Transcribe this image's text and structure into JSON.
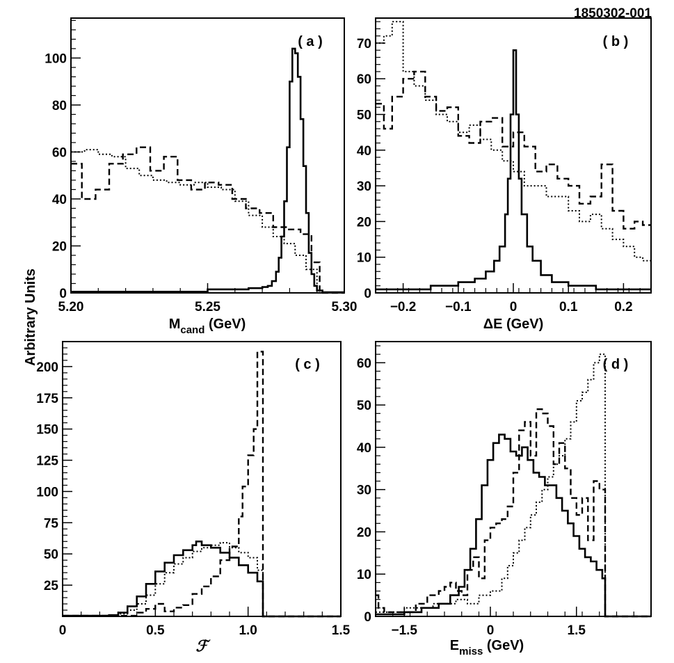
{
  "figure_id": "1850302-001",
  "y_axis_label": "Arbitrary Units",
  "chart_data": [
    {
      "type": "step",
      "tag": "( a )",
      "xlabel_main": "M",
      "xlabel_sub": "cand",
      "xlabel_unit": " (GeV)",
      "xlim": [
        5.2,
        5.3
      ],
      "ylim": [
        0,
        117
      ],
      "xticks": [
        {
          "v": 5.2,
          "label": "5.20"
        },
        {
          "v": 5.25,
          "label": "5.25"
        },
        {
          "v": 5.3,
          "label": "5.30"
        }
      ],
      "yticks": [
        {
          "v": 0,
          "label": "0"
        },
        {
          "v": 20,
          "label": "20"
        },
        {
          "v": 40,
          "label": "40"
        },
        {
          "v": 60,
          "label": "60"
        },
        {
          "v": 80,
          "label": "80"
        },
        {
          "v": 100,
          "label": "100"
        }
      ],
      "series": [
        {
          "name": "solid",
          "style": "solid",
          "x": [
            5.2,
            5.25,
            5.265,
            5.27,
            5.272,
            5.2735,
            5.275,
            5.276,
            5.277,
            5.278,
            5.279,
            5.28,
            5.281,
            5.282,
            5.283,
            5.284,
            5.285,
            5.286,
            5.287,
            5.288,
            5.289,
            5.29,
            5.292,
            5.3
          ],
          "y": [
            0.5,
            1.5,
            2,
            2.5,
            3,
            5,
            9,
            15,
            24,
            39,
            62,
            90,
            104,
            102,
            92,
            74,
            54,
            34,
            17,
            8,
            3,
            1,
            0.3,
            0.3
          ]
        },
        {
          "name": "dashed",
          "style": "dashed",
          "x": [
            5.2,
            5.204,
            5.209,
            5.214,
            5.219,
            5.224,
            5.229,
            5.234,
            5.239,
            5.244,
            5.249,
            5.254,
            5.259,
            5.264,
            5.269,
            5.274,
            5.279,
            5.284,
            5.288,
            5.291
          ],
          "y": [
            55,
            40,
            44,
            55,
            59,
            62,
            52,
            58,
            48,
            44,
            47,
            46,
            40,
            36,
            34,
            28,
            27,
            25,
            13,
            0
          ]
        },
        {
          "name": "dotted",
          "style": "dotted",
          "x": [
            5.2,
            5.205,
            5.21,
            5.215,
            5.22,
            5.225,
            5.23,
            5.235,
            5.24,
            5.245,
            5.25,
            5.255,
            5.26,
            5.265,
            5.27,
            5.274,
            5.278,
            5.282,
            5.286,
            5.29
          ],
          "y": [
            60,
            61,
            59,
            58,
            53,
            50,
            48,
            47,
            46,
            47,
            45,
            44,
            39,
            33,
            28,
            24,
            21,
            16,
            10,
            0
          ]
        }
      ]
    },
    {
      "type": "step",
      "tag": "( b )",
      "xlabel_main": "ΔE (GeV)",
      "xlim": [
        -0.25,
        0.25
      ],
      "ylim": [
        0,
        77
      ],
      "xticks": [
        {
          "v": -0.2,
          "label": "−0.2"
        },
        {
          "v": -0.1,
          "label": "−0.1"
        },
        {
          "v": 0,
          "label": "0"
        },
        {
          "v": 0.1,
          "label": "0.1"
        },
        {
          "v": 0.2,
          "label": "0.2"
        }
      ],
      "yticks": [
        {
          "v": 0,
          "label": "0"
        },
        {
          "v": 10,
          "label": "10"
        },
        {
          "v": 20,
          "label": "20"
        },
        {
          "v": 30,
          "label": "30"
        },
        {
          "v": 40,
          "label": "40"
        },
        {
          "v": 50,
          "label": "50"
        },
        {
          "v": 60,
          "label": "60"
        },
        {
          "v": 70,
          "label": "70"
        }
      ],
      "series": [
        {
          "name": "solid",
          "style": "solid",
          "x": [
            -0.25,
            -0.15,
            -0.1,
            -0.07,
            -0.05,
            -0.035,
            -0.025,
            -0.015,
            -0.01,
            -0.005,
            0,
            0.005,
            0.01,
            0.015,
            0.025,
            0.035,
            0.05,
            0.07,
            0.1,
            0.15,
            0.25
          ],
          "y": [
            1,
            2,
            3,
            4,
            6,
            9,
            13,
            22,
            32,
            50,
            68,
            50,
            32,
            22,
            13,
            9,
            5,
            3,
            2,
            1,
            1
          ]
        },
        {
          "name": "dashed",
          "style": "dashed",
          "x": [
            -0.25,
            -0.235,
            -0.22,
            -0.2,
            -0.18,
            -0.16,
            -0.14,
            -0.12,
            -0.1,
            -0.08,
            -0.06,
            -0.04,
            -0.02,
            0,
            0.02,
            0.04,
            0.06,
            0.08,
            0.1,
            0.12,
            0.14,
            0.16,
            0.18,
            0.2,
            0.22,
            0.235
          ],
          "y": [
            53,
            46,
            55,
            60,
            62,
            55,
            51,
            52,
            44,
            42,
            48,
            49,
            41,
            45,
            41,
            34,
            36,
            32,
            30,
            25,
            27,
            36,
            23,
            18,
            20,
            19
          ]
        },
        {
          "name": "dotted",
          "style": "dotted",
          "x": [
            -0.25,
            -0.235,
            -0.22,
            -0.2,
            -0.18,
            -0.16,
            -0.14,
            -0.12,
            -0.1,
            -0.08,
            -0.06,
            -0.04,
            -0.02,
            0,
            0.02,
            0.04,
            0.06,
            0.08,
            0.1,
            0.12,
            0.14,
            0.16,
            0.18,
            0.2,
            0.22,
            0.235
          ],
          "y": [
            70,
            72,
            76,
            62,
            58,
            54,
            50,
            48,
            45,
            47,
            43,
            40,
            37,
            34,
            30,
            30,
            27,
            27,
            23,
            20,
            22,
            18,
            15,
            13,
            10,
            9
          ]
        }
      ]
    },
    {
      "type": "step",
      "tag": "( c )",
      "xlabel_main": "ℱ",
      "xlim": [
        0,
        1.5
      ],
      "ylim": [
        0,
        220
      ],
      "xticks": [
        {
          "v": 0,
          "label": "0"
        },
        {
          "v": 0.5,
          "label": "0.5"
        },
        {
          "v": 1.0,
          "label": "1.0"
        },
        {
          "v": 1.5,
          "label": "1.5"
        }
      ],
      "yticks": [
        {
          "v": 25,
          "label": "25"
        },
        {
          "v": 50,
          "label": "50"
        },
        {
          "v": 75,
          "label": "75"
        },
        {
          "v": 100,
          "label": "100"
        },
        {
          "v": 125,
          "label": "125"
        },
        {
          "v": 150,
          "label": "150"
        },
        {
          "v": 175,
          "label": "175"
        },
        {
          "v": 200,
          "label": "200"
        }
      ],
      "series": [
        {
          "name": "solid",
          "style": "solid",
          "x": [
            0,
            0.25,
            0.3,
            0.35,
            0.4,
            0.45,
            0.5,
            0.55,
            0.6,
            0.65,
            0.7,
            0.72,
            0.75,
            0.8,
            0.85,
            0.9,
            0.95,
            1.0,
            1.05,
            1.08
          ],
          "y": [
            0.5,
            1,
            3,
            8,
            16,
            26,
            36,
            43,
            49,
            53,
            57,
            60,
            57,
            55,
            51,
            47,
            41,
            35,
            28,
            0
          ]
        },
        {
          "name": "dashed",
          "style": "dashed",
          "x": [
            0,
            0.4,
            0.45,
            0.5,
            0.55,
            0.6,
            0.65,
            0.7,
            0.75,
            0.8,
            0.85,
            0.9,
            0.95,
            0.97,
            1.0,
            1.03,
            1.05,
            1.08
          ],
          "y": [
            0.5,
            3,
            6,
            10,
            4,
            7,
            9,
            18,
            24,
            32,
            45,
            56,
            80,
            104,
            129,
            150,
            212,
            0
          ]
        },
        {
          "name": "dotted",
          "style": "dotted",
          "x": [
            0,
            0.3,
            0.35,
            0.4,
            0.45,
            0.5,
            0.55,
            0.6,
            0.65,
            0.7,
            0.75,
            0.8,
            0.85,
            0.9,
            0.95,
            1.0,
            1.05,
            1.08
          ],
          "y": [
            0.5,
            2,
            5,
            10,
            17,
            26,
            35,
            42,
            47,
            52,
            55,
            57,
            59,
            55,
            51,
            47,
            37,
            0
          ]
        }
      ]
    },
    {
      "type": "step",
      "tag": "( d )",
      "xlabel_main": "E",
      "xlabel_sub": "miss",
      "xlabel_unit": " (GeV)",
      "xlim": [
        -2,
        2.8
      ],
      "ylim": [
        0,
        65
      ],
      "xticks": [
        {
          "v": -1.5,
          "label": "−1.5"
        },
        {
          "v": 0,
          "label": "0"
        },
        {
          "v": 1.5,
          "label": "1.5"
        }
      ],
      "yticks": [
        {
          "v": 0,
          "label": "0"
        },
        {
          "v": 10,
          "label": "10"
        },
        {
          "v": 20,
          "label": "20"
        },
        {
          "v": 30,
          "label": "30"
        },
        {
          "v": 40,
          "label": "40"
        },
        {
          "v": 50,
          "label": "50"
        },
        {
          "v": 60,
          "label": "60"
        }
      ],
      "series": [
        {
          "name": "solid",
          "style": "solid",
          "x": [
            -2,
            -1.5,
            -1.2,
            -0.9,
            -0.7,
            -0.55,
            -0.45,
            -0.35,
            -0.25,
            -0.15,
            -0.05,
            0.05,
            0.15,
            0.25,
            0.35,
            0.45,
            0.55,
            0.65,
            0.75,
            0.85,
            0.95,
            1.05,
            1.15,
            1.25,
            1.35,
            1.45,
            1.55,
            1.65,
            1.75,
            1.85,
            1.95,
            2.0
          ],
          "y": [
            0.5,
            1,
            2,
            3,
            5,
            7,
            11,
            16,
            23,
            31,
            37,
            41,
            43,
            42,
            39,
            38,
            40,
            37,
            34,
            33,
            31,
            31,
            28,
            25,
            22,
            19,
            16,
            14,
            13,
            11,
            9,
            0
          ]
        },
        {
          "name": "dashed",
          "style": "dashed",
          "x": [
            -2,
            -1.95,
            -1.85,
            -1.6,
            -1.3,
            -1.1,
            -0.9,
            -0.8,
            -0.7,
            -0.6,
            -0.5,
            -0.4,
            -0.3,
            -0.2,
            -0.1,
            0,
            0.1,
            0.2,
            0.3,
            0.4,
            0.5,
            0.6,
            0.7,
            0.8,
            0.9,
            1.0,
            1.1,
            1.2,
            1.3,
            1.4,
            1.5,
            1.6,
            1.7,
            1.8,
            1.9,
            2.0
          ],
          "y": [
            5,
            2,
            1,
            1,
            3,
            5,
            6,
            7,
            8,
            6,
            5,
            11,
            14,
            9,
            18,
            21,
            22,
            23,
            26,
            34,
            44,
            46,
            38,
            49,
            48,
            45,
            36,
            41,
            35,
            28,
            24,
            28,
            18,
            32,
            30,
            0
          ]
        },
        {
          "name": "dotted",
          "style": "dotted",
          "x": [
            -2,
            -1.5,
            -1.0,
            -0.6,
            -0.4,
            -0.2,
            0,
            0.2,
            0.3,
            0.4,
            0.5,
            0.6,
            0.7,
            0.8,
            0.9,
            1.0,
            1.1,
            1.2,
            1.3,
            1.4,
            1.5,
            1.6,
            1.7,
            1.8,
            1.9,
            2.0
          ],
          "y": [
            1,
            2,
            3,
            4,
            3,
            5,
            6,
            9,
            12,
            15,
            18,
            21,
            24,
            27,
            30,
            33,
            36,
            38,
            42,
            46,
            51,
            53,
            56,
            60,
            62,
            0
          ]
        }
      ]
    }
  ]
}
